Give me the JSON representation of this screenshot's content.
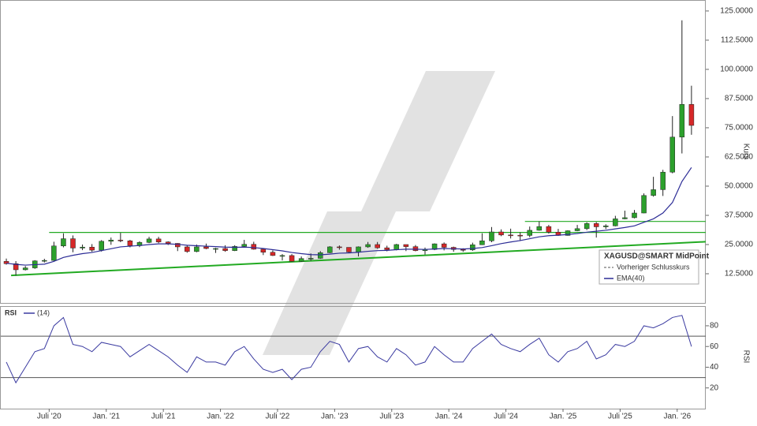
{
  "chart_data": [
    {
      "type": "candlestick",
      "x": [
        "2020-02",
        "2020-03",
        "2020-04",
        "2020-05",
        "2020-06",
        "2020-07",
        "2020-08",
        "2020-09",
        "2020-10",
        "2020-11",
        "2020-12",
        "2021-01",
        "2021-02",
        "2021-03",
        "2021-04",
        "2021-05",
        "2021-06",
        "2021-07",
        "2021-08",
        "2021-09",
        "2021-10",
        "2021-11",
        "2021-12",
        "2022-01",
        "2022-02",
        "2022-03",
        "2022-04",
        "2022-05",
        "2022-06",
        "2022-07",
        "2022-08",
        "2022-09",
        "2022-10",
        "2022-11",
        "2022-12",
        "2023-01",
        "2023-02",
        "2023-03",
        "2023-04",
        "2023-05",
        "2023-06",
        "2023-07",
        "2023-08",
        "2023-09",
        "2023-10",
        "2023-11",
        "2023-12",
        "2024-01",
        "2024-02",
        "2024-03",
        "2024-04",
        "2024-05",
        "2024-06",
        "2024-07",
        "2024-08",
        "2024-09",
        "2024-10",
        "2024-11",
        "2024-12",
        "2025-01",
        "2025-02",
        "2025-03",
        "2025-04",
        "2025-05",
        "2025-06",
        "2025-07",
        "2025-08",
        "2025-09",
        "2025-10",
        "2025-11",
        "2025-12",
        "2026-01",
        "2026-02"
      ],
      "series": [
        {
          "name": "XAGUSD@SMART MidPoint",
          "up_color": "#2ca02c",
          "down_color": "#d62728",
          "open": [
            17.8,
            16.8,
            14.2,
            15.0,
            18.0,
            18.2,
            24.4,
            27.5,
            23.5,
            23.9,
            22.6,
            26.4,
            26.9,
            26.6,
            24.5,
            25.9,
            27.4,
            26.1,
            25.5,
            24.0,
            22.0,
            24.0,
            23.3,
            23.3,
            22.4,
            24.2,
            25.1,
            23.0,
            21.7,
            20.3,
            20.3,
            17.8,
            19.0,
            19.1,
            21.5,
            24.0,
            23.8,
            21.8,
            24.0,
            25.0,
            23.6,
            22.8,
            25.0,
            24.1,
            22.4,
            22.9,
            25.3,
            23.8,
            22.9,
            22.7,
            24.9,
            26.6,
            30.4,
            29.1,
            29.0,
            28.9,
            31.1,
            32.7,
            30.3,
            28.9,
            30.9,
            31.8,
            34.0,
            32.6,
            33.0,
            36.0,
            36.5,
            38.5,
            46.0,
            48.5,
            56.0,
            71.0,
            85.0
          ],
          "high": [
            19.0,
            17.9,
            15.8,
            18.3,
            18.9,
            26.2,
            29.8,
            28.9,
            25.0,
            25.2,
            26.9,
            28.0,
            30.0,
            27.0,
            26.4,
            28.3,
            28.3,
            26.4,
            25.6,
            24.8,
            25.0,
            25.4,
            23.6,
            24.7,
            24.7,
            27.0,
            26.2,
            23.2,
            22.5,
            20.9,
            20.9,
            19.9,
            21.2,
            22.2,
            24.3,
            24.6,
            23.8,
            24.2,
            26.1,
            26.1,
            24.5,
            25.3,
            25.0,
            24.8,
            23.7,
            25.5,
            25.9,
            24.1,
            23.4,
            25.8,
            29.8,
            32.5,
            31.5,
            31.8,
            30.2,
            32.7,
            34.9,
            33.4,
            31.7,
            31.1,
            33.4,
            34.5,
            34.6,
            33.7,
            37.3,
            39.5,
            39.8,
            46.9,
            54.0,
            57.0,
            80.0,
            121.0,
            93.0
          ],
          "low": [
            16.4,
            11.7,
            13.9,
            14.6,
            17.3,
            18.0,
            23.8,
            21.7,
            22.6,
            21.9,
            22.0,
            24.9,
            26.0,
            23.8,
            23.9,
            25.6,
            25.6,
            24.8,
            22.2,
            21.5,
            21.7,
            23.0,
            21.4,
            21.9,
            22.2,
            23.9,
            22.8,
            20.5,
            20.1,
            18.2,
            17.6,
            17.6,
            18.1,
            18.9,
            21.3,
            22.8,
            21.3,
            19.9,
            23.6,
            23.2,
            22.1,
            22.5,
            22.2,
            22.1,
            20.7,
            22.6,
            22.5,
            21.9,
            21.9,
            22.3,
            24.8,
            26.0,
            28.6,
            27.6,
            26.5,
            28.1,
            30.9,
            29.7,
            28.7,
            28.8,
            30.7,
            31.2,
            28.0,
            31.6,
            32.8,
            35.8,
            36.2,
            38.4,
            45.5,
            45.8,
            55.5,
            64.0,
            72.0
          ],
          "close": [
            16.8,
            14.2,
            15.0,
            18.0,
            18.2,
            24.4,
            27.5,
            23.5,
            23.9,
            22.6,
            26.4,
            26.9,
            26.6,
            24.5,
            25.9,
            27.4,
            26.1,
            25.5,
            24.0,
            22.0,
            24.0,
            23.3,
            23.3,
            22.4,
            24.2,
            25.1,
            23.0,
            21.7,
            20.3,
            20.3,
            17.8,
            19.0,
            19.1,
            21.5,
            24.0,
            23.8,
            21.8,
            24.0,
            25.0,
            23.6,
            22.8,
            25.0,
            24.1,
            22.4,
            22.9,
            25.3,
            23.8,
            22.9,
            22.7,
            24.9,
            26.6,
            30.4,
            29.1,
            29.0,
            28.9,
            31.1,
            32.7,
            30.3,
            28.9,
            30.9,
            31.8,
            34.0,
            32.6,
            33.0,
            36.0,
            36.5,
            38.5,
            46.0,
            48.5,
            56.0,
            71.0,
            85.0,
            76.0
          ]
        },
        {
          "name": "Vorheriger Schlusskurs",
          "color": "#555555"
        },
        {
          "name": "EMA(40)",
          "color": "#2c2c96",
          "values": [
            17.0,
            16.5,
            16.2,
            16.4,
            16.6,
            17.8,
            19.5,
            20.4,
            21.1,
            21.6,
            22.4,
            23.2,
            24.0,
            24.3,
            24.6,
            25.0,
            25.3,
            25.3,
            25.1,
            24.7,
            24.5,
            24.3,
            24.1,
            23.9,
            23.8,
            23.9,
            23.7,
            23.3,
            22.8,
            22.3,
            21.6,
            21.1,
            20.7,
            20.6,
            20.9,
            21.3,
            21.4,
            21.7,
            22.1,
            22.4,
            22.5,
            22.8,
            23.0,
            23.0,
            22.9,
            23.1,
            23.3,
            23.2,
            23.1,
            23.3,
            23.7,
            24.5,
            25.4,
            26.1,
            26.7,
            27.5,
            28.3,
            28.8,
            29.0,
            29.3,
            29.7,
            30.3,
            30.7,
            31.1,
            31.7,
            32.3,
            33.0,
            34.5,
            36.0,
            38.5,
            43.0,
            52.0,
            58.0
          ]
        }
      ],
      "lines": [
        {
          "color": "#22aa22",
          "from": [
            "2020-07",
            30.2
          ],
          "to": [
            "2026-04",
            30.2
          ]
        },
        {
          "color": "#22aa22",
          "from": [
            "2024-09",
            34.9
          ],
          "to": [
            "2026-04",
            34.9
          ]
        },
        {
          "color": "#22aa22",
          "from": [
            "2020-03",
            11.8
          ],
          "to": [
            "2026-04",
            26.2
          ]
        }
      ],
      "y_label": "Kurs",
      "ylim": [
        0,
        129.7
      ],
      "yticks": [
        {
          "value": 12.5,
          "label": "12.5000"
        },
        {
          "value": 25,
          "label": "25.0000"
        },
        {
          "value": 37.5,
          "label": "37.5000"
        },
        {
          "value": 50,
          "label": "50.0000"
        },
        {
          "value": 62.5,
          "label": "62.5000"
        },
        {
          "value": 75,
          "label": "75.0000"
        },
        {
          "value": 87.5,
          "label": "87.5000"
        },
        {
          "value": 100,
          "label": "100.0000"
        },
        {
          "value": 112.5,
          "label": "112.5000"
        },
        {
          "value": 125,
          "label": "125.0000"
        }
      ],
      "xlim": [
        "2020-02",
        "2026-04"
      ],
      "xticks": [
        {
          "value": "2020-07",
          "label": "Juli '20"
        },
        {
          "value": "2021-01",
          "label": "Jan. '21"
        },
        {
          "value": "2021-07",
          "label": "Juli '21"
        },
        {
          "value": "2022-01",
          "label": "Jan. '22"
        },
        {
          "value": "2022-07",
          "label": "Juli '22"
        },
        {
          "value": "2023-01",
          "label": "Jan. '23"
        },
        {
          "value": "2023-07",
          "label": "Juli '23"
        },
        {
          "value": "2024-01",
          "label": "Jan. '24"
        },
        {
          "value": "2024-07",
          "label": "Juli '24"
        },
        {
          "value": "2025-01",
          "label": "Jan. '25"
        },
        {
          "value": "2025-07",
          "label": "Juli '25"
        },
        {
          "value": "2026-01",
          "label": "Jan. '26"
        }
      ]
    },
    {
      "type": "line",
      "title": "RSI",
      "series": [
        {
          "name": "(14)",
          "color": "#3a3aa0",
          "values": [
            45,
            25,
            40,
            55,
            58,
            80,
            88,
            62,
            60,
            55,
            64,
            62,
            60,
            50,
            56,
            62,
            56,
            50,
            42,
            35,
            50,
            45,
            45,
            42,
            55,
            60,
            48,
            38,
            35,
            38,
            28,
            38,
            40,
            55,
            65,
            62,
            45,
            58,
            60,
            50,
            45,
            58,
            52,
            42,
            45,
            60,
            52,
            45,
            45,
            58,
            65,
            72,
            62,
            58,
            55,
            62,
            68,
            52,
            45,
            55,
            58,
            65,
            48,
            52,
            62,
            60,
            65,
            80,
            78,
            82,
            88,
            90,
            60
          ]
        }
      ],
      "y_label": "RSI",
      "ylim": [
        0,
        99
      ],
      "yticks": [
        20,
        40,
        60,
        80
      ],
      "levels": [
        70,
        30
      ]
    }
  ]
}
